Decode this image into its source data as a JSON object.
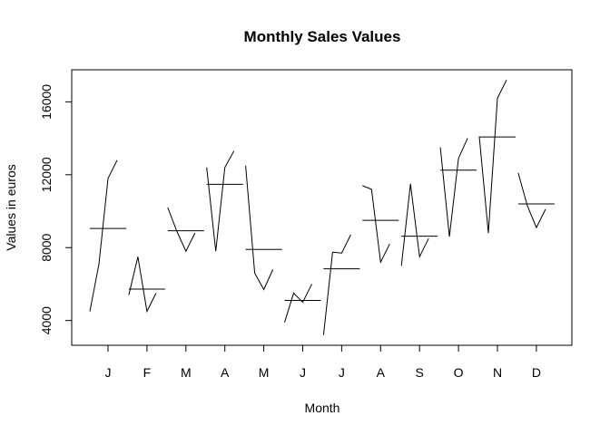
{
  "chart_data": {
    "type": "monthplot",
    "title": "Monthly Sales Values",
    "xlabel": "Month",
    "ylabel": "Values in euros",
    "categories": [
      "J",
      "F",
      "M",
      "A",
      "M",
      "J",
      "J",
      "A",
      "S",
      "O",
      "N",
      "D"
    ],
    "subseries": [
      [
        4500,
        7100,
        11800,
        12800
      ],
      [
        5400,
        7500,
        4500,
        5500
      ],
      [
        10200,
        8900,
        7800,
        8800
      ],
      [
        12400,
        7800,
        12400,
        13300
      ],
      [
        12500,
        6600,
        5700,
        6800
      ],
      [
        3900,
        5500,
        5000,
        6000
      ],
      [
        3200,
        7750,
        7700,
        8700
      ],
      [
        11400,
        11200,
        7200,
        8200
      ],
      [
        7000,
        11500,
        7500,
        8500
      ],
      [
        13500,
        8600,
        12900,
        14000
      ],
      [
        14100,
        8800,
        16200,
        17200
      ],
      [
        12100,
        10300,
        9100,
        10100
      ]
    ],
    "means": [
      9050,
      5725,
      8925,
      11475,
      7900,
      5100,
      6838,
      9500,
      8625,
      12250,
      14075,
      10400
    ],
    "color": "#000000",
    "ylim": [
      2640,
      17760
    ],
    "yticks": [
      4000,
      8000,
      12000,
      16000
    ]
  }
}
